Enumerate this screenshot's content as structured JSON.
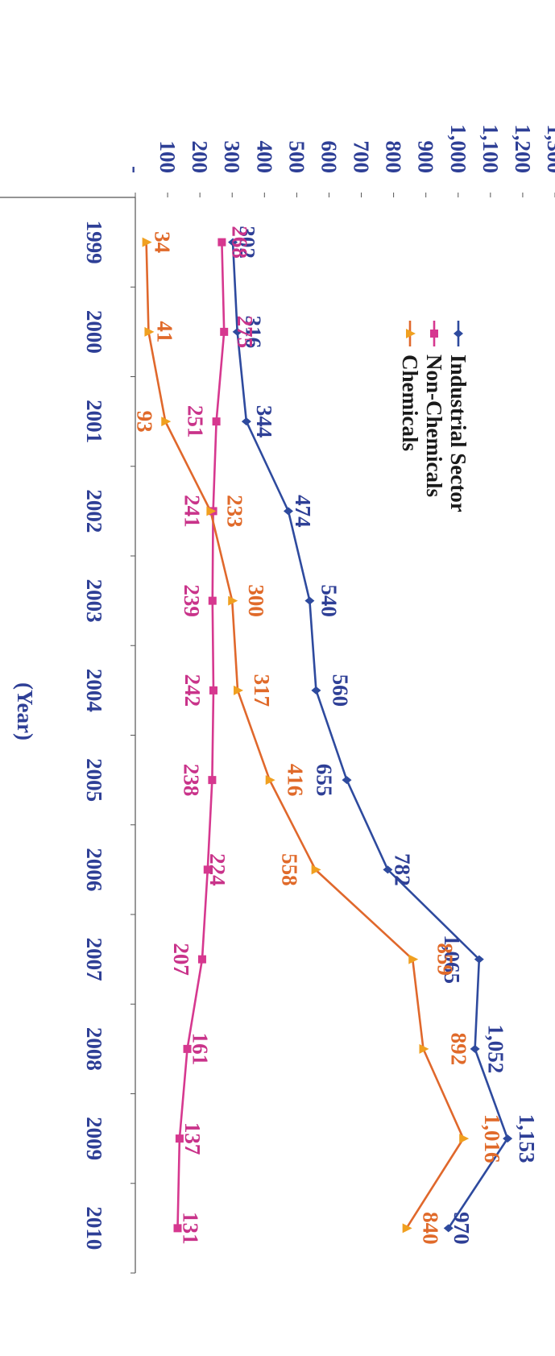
{
  "chart_data": {
    "type": "line",
    "orientation": "rotated 90 degrees clockwise",
    "title": "",
    "xlabel": "(Year)",
    "ylabel": "",
    "categories": [
      "1999",
      "2000",
      "2001",
      "2002",
      "2003",
      "2004",
      "2005",
      "2006",
      "2007",
      "2008",
      "2009",
      "2010"
    ],
    "y_tick_labels": [
      "-",
      "100",
      "200",
      "300",
      "400",
      "500",
      "600",
      "700",
      "800",
      "900",
      "1,000",
      "1,100",
      "1,200",
      "1,300"
    ],
    "ylim": [
      0,
      1300
    ],
    "grid": false,
    "legend_position": "top-left",
    "series": [
      {
        "name": "Industrial Sector",
        "color": "#2e4a9e",
        "label_color": "#2e3f96",
        "marker": "diamond",
        "values": [
          302,
          316,
          344,
          474,
          540,
          560,
          655,
          782,
          1065,
          1052,
          1153,
          970
        ],
        "labels": [
          "302",
          "316",
          "344",
          "474",
          "540",
          "560",
          "655",
          "782",
          "1,065",
          "1,052",
          "1,153",
          "970"
        ]
      },
      {
        "name": "Non-Chemicals",
        "color": "#d6388f",
        "label_color": "#c9338a",
        "marker": "square",
        "values": [
          268,
          275,
          251,
          241,
          239,
          242,
          238,
          224,
          207,
          161,
          137,
          131
        ],
        "labels": [
          "268",
          "275",
          "251",
          "241",
          "239",
          "242",
          "238",
          "224",
          "207",
          "161",
          "137",
          "131"
        ]
      },
      {
        "name": "Chemicals",
        "color": "#e0682c",
        "label_color": "#e06a2a",
        "marker": "triangle",
        "marker_color": "#f0a020",
        "values": [
          34,
          41,
          93,
          233,
          300,
          317,
          416,
          558,
          859,
          892,
          1016,
          840
        ],
        "labels": [
          "34",
          "41",
          "93",
          "233",
          "300",
          "317",
          "416",
          "558",
          "859",
          "892",
          "1,016",
          "840"
        ]
      }
    ]
  }
}
